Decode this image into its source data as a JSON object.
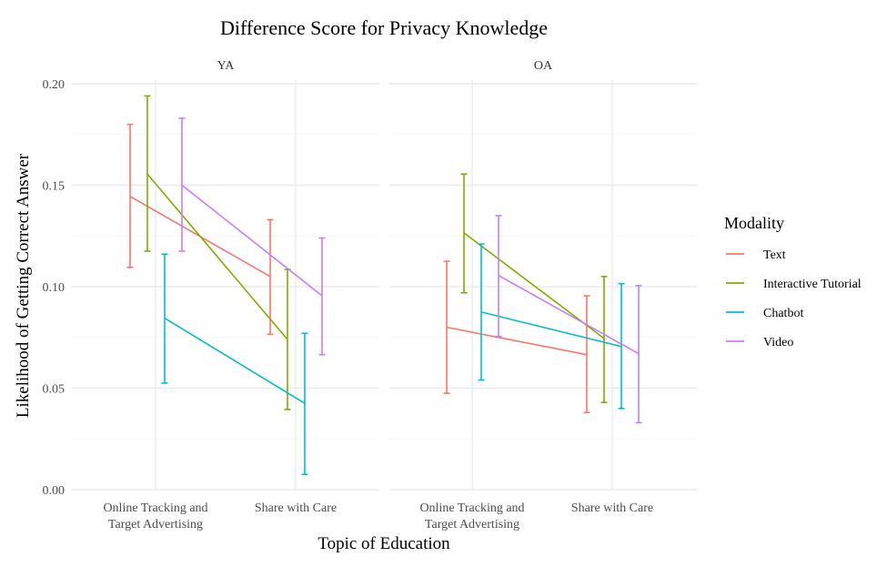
{
  "chart_data": {
    "type": "line",
    "title": "Difference Score for Privacy Knowledge",
    "xlabel": "Topic of Education",
    "ylabel": "Likelihood of Getting Correct Answer",
    "categories": [
      [
        "Online Tracking and",
        "Target Advertising"
      ],
      [
        "Share with Care"
      ]
    ],
    "ylim": [
      0,
      0.2
    ],
    "yticks": [
      "0.00",
      "0.05",
      "0.10",
      "0.15",
      "0.20"
    ],
    "ytick_values": [
      0,
      0.05,
      0.1,
      0.15,
      0.2
    ],
    "grid": true,
    "legend": {
      "title": "Modality",
      "placement": "right",
      "entries": [
        "Text",
        "Interactive Tutorial",
        "Chatbot",
        "Video"
      ]
    },
    "colors": {
      "Text": "#F8766D",
      "Interactive Tutorial": "#7CAE00",
      "Chatbot": "#00BFC4",
      "Video": "#C77CFF"
    },
    "panels": [
      {
        "label": "YA",
        "series": [
          {
            "name": "Text",
            "values": [
              0.1445,
              0.105
            ],
            "lower": [
              0.1095,
              0.0765
            ],
            "upper": [
              0.18,
              0.133
            ]
          },
          {
            "name": "Interactive Tutorial",
            "values": [
              0.1555,
              0.074
            ],
            "lower": [
              0.1175,
              0.0395
            ],
            "upper": [
              0.194,
              0.1085
            ]
          },
          {
            "name": "Chatbot",
            "values": [
              0.0845,
              0.0425
            ],
            "lower": [
              0.0525,
              0.0075
            ],
            "upper": [
              0.116,
              0.077
            ]
          },
          {
            "name": "Video",
            "values": [
              0.15,
              0.0955
            ],
            "lower": [
              0.1175,
              0.0665
            ],
            "upper": [
              0.183,
              0.124
            ]
          }
        ]
      },
      {
        "label": "OA",
        "series": [
          {
            "name": "Text",
            "values": [
              0.08,
              0.0665
            ],
            "lower": [
              0.0475,
              0.038
            ],
            "upper": [
              0.1125,
              0.0955
            ]
          },
          {
            "name": "Interactive Tutorial",
            "values": [
              0.1265,
              0.0745
            ],
            "lower": [
              0.097,
              0.043
            ],
            "upper": [
              0.1555,
              0.105
            ]
          },
          {
            "name": "Chatbot",
            "values": [
              0.0875,
              0.0705
            ],
            "lower": [
              0.054,
              0.04
            ],
            "upper": [
              0.121,
              0.1015
            ]
          },
          {
            "name": "Video",
            "values": [
              0.1055,
              0.067
            ],
            "lower": [
              0.0755,
              0.033
            ],
            "upper": [
              0.135,
              0.1005
            ]
          }
        ]
      }
    ]
  }
}
